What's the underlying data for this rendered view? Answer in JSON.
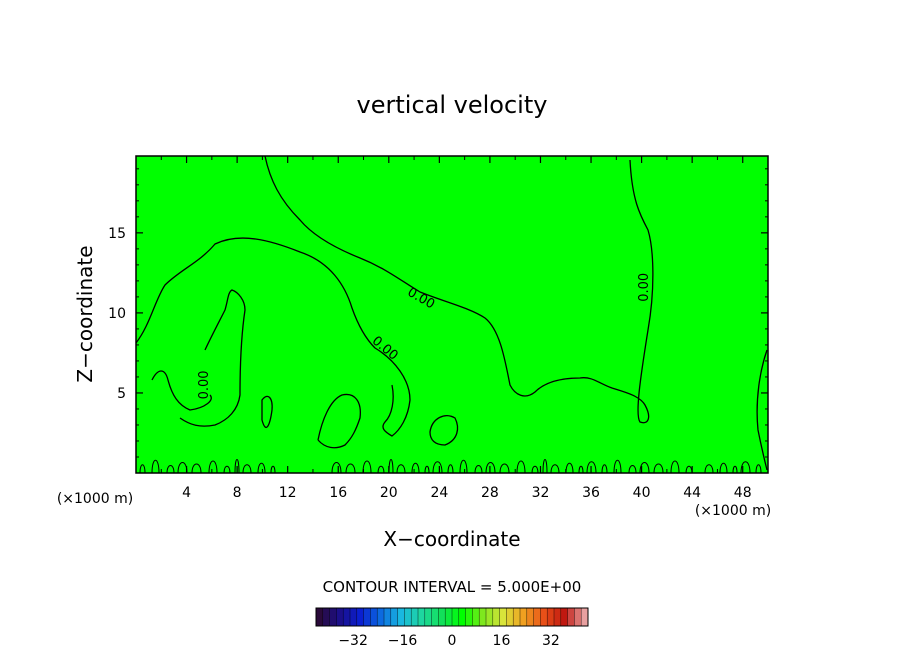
{
  "chart_data": {
    "type": "heatmap",
    "title": "vertical velocity",
    "xlabel": "X−coordinate",
    "ylabel": "Z−coordinate",
    "x_unit_left": "(×1000 m)",
    "x_unit_right": "(×1000 m)",
    "xlim": [
      0,
      50
    ],
    "ylim": [
      0,
      19.8
    ],
    "x_ticks": [
      4,
      8,
      12,
      16,
      20,
      24,
      28,
      32,
      36,
      40,
      44,
      48
    ],
    "y_ticks": [
      5,
      10,
      15
    ],
    "background_value": 0,
    "contour_level": 0,
    "contour_labels": [
      {
        "text": "0.00",
        "x": 22.4,
        "y": 10.7
      },
      {
        "text": "0.00",
        "x": 19.5,
        "y": 7.6
      },
      {
        "text": "0.00",
        "x": 40.5,
        "y": 11.6
      },
      {
        "text": "0.00",
        "x": 5.7,
        "y": 5.5
      }
    ],
    "contour_interval_text": "CONTOUR INTERVAL = 5.000E+00",
    "colorbar": {
      "range": [
        -44,
        44
      ],
      "tick_values": [
        -32,
        -16,
        0,
        16,
        32
      ],
      "tick_labels": [
        "−32",
        "−16",
        "0",
        "16",
        "32"
      ],
      "colors": [
        "#2a0a3a",
        "#1b0f8a",
        "#0a1fd0",
        "#0c6ae0",
        "#19b8e0",
        "#1ed6a0",
        "#12e05a",
        "#00ff00",
        "#7ee81e",
        "#d8e43a",
        "#f0a020",
        "#e85018",
        "#c01810",
        "#e8a0a0"
      ]
    }
  }
}
